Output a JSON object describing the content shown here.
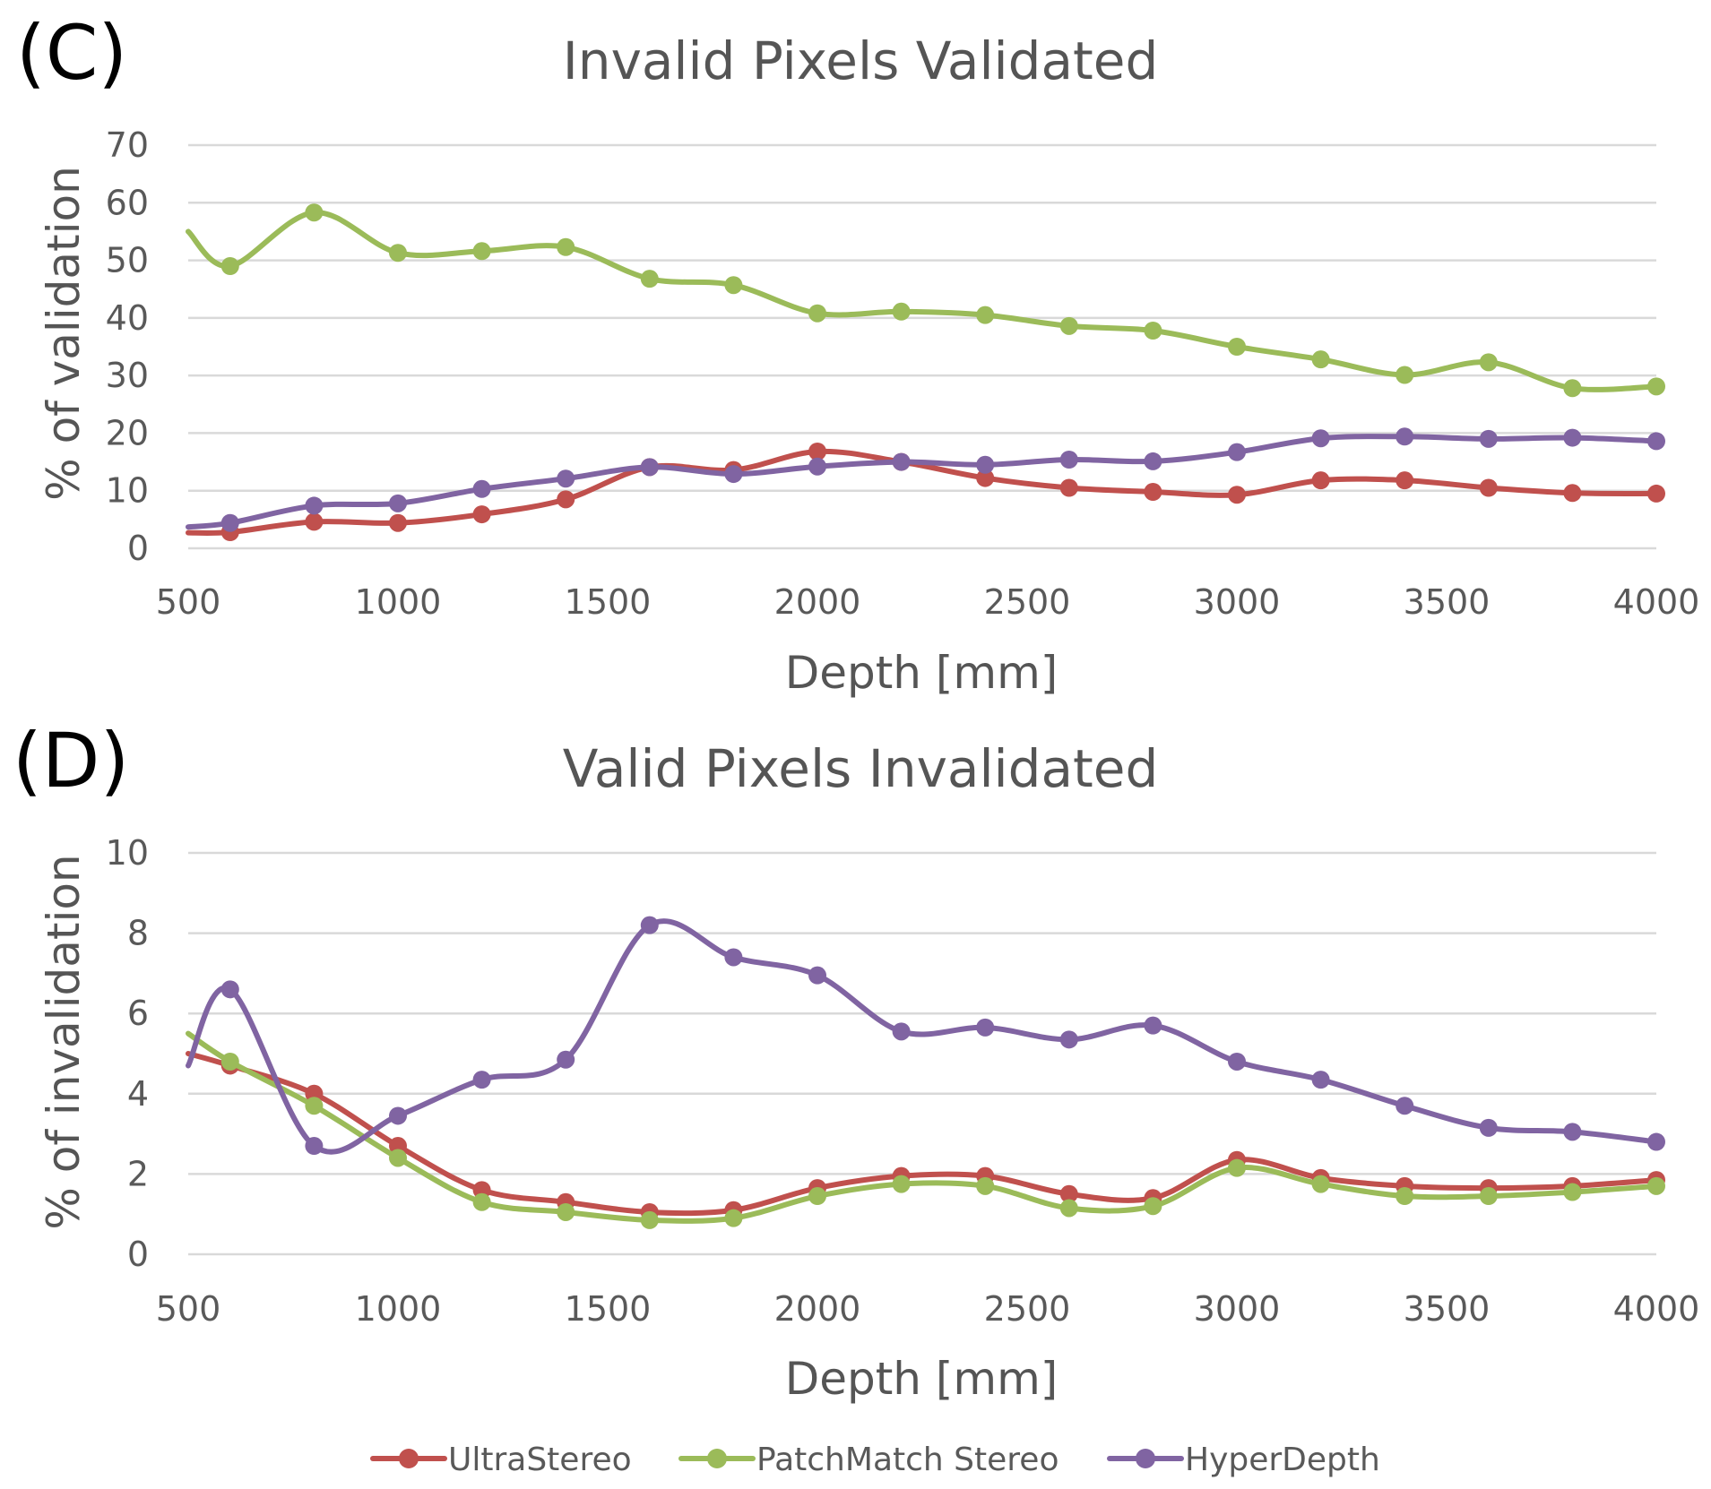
{
  "legend": {
    "position": "bottom",
    "items": [
      {
        "label": "UltraStereo",
        "color": "#c0504d"
      },
      {
        "label": "PatchMatch Stereo",
        "color": "#9bbb59"
      },
      {
        "label": "HyperDepth",
        "color": "#8064a2"
      }
    ]
  },
  "chart_data": [
    {
      "panel": "(C)",
      "type": "line",
      "title": "Invalid Pixels Validated",
      "xlabel": "Depth [mm]",
      "ylabel": "% of validation",
      "xlim": [
        500,
        4000
      ],
      "ylim": [
        0,
        70
      ],
      "x_ticks": [
        "500",
        "1000",
        "1500",
        "2000",
        "2500",
        "3000",
        "3500",
        "4000"
      ],
      "y_ticks": [
        "0",
        "10",
        "20",
        "30",
        "40",
        "50",
        "60",
        "70"
      ],
      "grid": true,
      "x": [
        500,
        600,
        800,
        1000,
        1200,
        1400,
        1600,
        1800,
        2000,
        2200,
        2400,
        2600,
        2800,
        3000,
        3200,
        3400,
        3600,
        3800,
        4000
      ],
      "series": [
        {
          "name": "UltraStereo",
          "color": "#c0504d",
          "values": [
            2.7,
            2.8,
            4.6,
            4.4,
            5.9,
            8.5,
            14.1,
            13.6,
            16.8,
            15.0,
            12.2,
            10.5,
            9.8,
            9.3,
            11.8,
            11.8,
            10.5,
            9.6,
            9.5
          ]
        },
        {
          "name": "PatchMatch Stereo",
          "color": "#9bbb59",
          "values": [
            55.0,
            49.0,
            58.3,
            51.3,
            51.6,
            52.3,
            46.8,
            45.7,
            40.8,
            41.1,
            40.5,
            38.6,
            37.8,
            35.0,
            32.8,
            30.1,
            32.3,
            27.8,
            28.1
          ]
        },
        {
          "name": "HyperDepth",
          "color": "#8064a2",
          "values": [
            3.7,
            4.4,
            7.4,
            7.8,
            10.3,
            12.1,
            14.1,
            12.9,
            14.2,
            15.0,
            14.5,
            15.4,
            15.1,
            16.7,
            19.1,
            19.4,
            19.0,
            19.2,
            18.6
          ]
        }
      ]
    },
    {
      "panel": "(D)",
      "type": "line",
      "title": "Valid Pixels Invalidated",
      "xlabel": "Depth [mm]",
      "ylabel": "% of invalidation",
      "xlim": [
        500,
        4000
      ],
      "ylim": [
        0,
        10
      ],
      "x_ticks": [
        "500",
        "1000",
        "1500",
        "2000",
        "2500",
        "3000",
        "3500",
        "4000"
      ],
      "y_ticks": [
        "0",
        "2",
        "4",
        "6",
        "8",
        "10"
      ],
      "grid": true,
      "x": [
        500,
        600,
        800,
        1000,
        1200,
        1400,
        1600,
        1800,
        2000,
        2200,
        2400,
        2600,
        2800,
        3000,
        3200,
        3400,
        3600,
        3800,
        4000
      ],
      "series": [
        {
          "name": "UltraStereo",
          "color": "#c0504d",
          "values": [
            5.0,
            4.7,
            4.0,
            2.7,
            1.6,
            1.3,
            1.05,
            1.1,
            1.65,
            1.95,
            1.95,
            1.5,
            1.4,
            2.35,
            1.9,
            1.7,
            1.65,
            1.7,
            1.85
          ]
        },
        {
          "name": "PatchMatch Stereo",
          "color": "#9bbb59",
          "values": [
            5.5,
            4.8,
            3.7,
            2.4,
            1.3,
            1.05,
            0.85,
            0.9,
            1.45,
            1.75,
            1.7,
            1.15,
            1.2,
            2.15,
            1.75,
            1.45,
            1.45,
            1.55,
            1.7
          ]
        },
        {
          "name": "HyperDepth",
          "color": "#8064a2",
          "values": [
            4.7,
            6.6,
            2.7,
            3.45,
            4.35,
            4.85,
            8.2,
            7.4,
            6.95,
            5.55,
            5.65,
            5.35,
            5.7,
            4.8,
            4.35,
            3.7,
            3.15,
            3.05,
            2.8
          ]
        }
      ]
    }
  ]
}
